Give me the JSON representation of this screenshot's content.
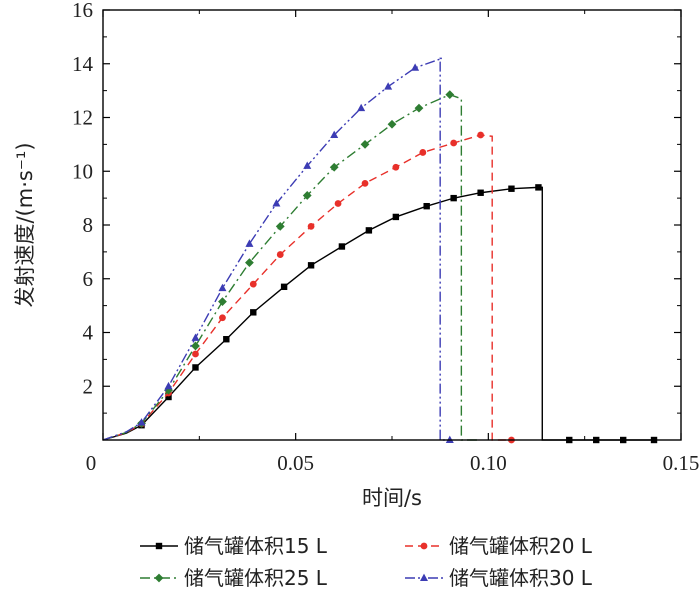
{
  "chart_data": {
    "type": "line",
    "xlabel": "时间/s",
    "ylabel": "发射速度/(m·s⁻¹)",
    "xlim": [
      0,
      0.15
    ],
    "ylim": [
      0,
      16
    ],
    "x_ticks": [
      0,
      0.05,
      0.1,
      0.15
    ],
    "x_tick_labels": [
      "0",
      "0.05",
      "0.10",
      "0.15"
    ],
    "y_ticks": [
      2,
      4,
      6,
      8,
      10,
      12,
      14,
      16
    ],
    "y_tick_labels": [
      "2",
      "4",
      "6",
      "8",
      "10",
      "12",
      "14",
      "16"
    ],
    "grid": false,
    "legend_position": "bottom",
    "series": [
      {
        "name": "储气罐体积15 L",
        "color": "#000000",
        "marker": "square",
        "dash": "solid",
        "x": [
          0,
          0.006,
          0.01,
          0.017,
          0.024,
          0.032,
          0.039,
          0.047,
          0.054,
          0.062,
          0.069,
          0.076,
          0.084,
          0.091,
          0.098,
          0.106,
          0.113,
          0.114,
          0.114,
          0.121,
          0.128,
          0.135,
          0.143
        ],
        "y": [
          0,
          0.25,
          0.55,
          1.6,
          2.7,
          3.75,
          4.75,
          5.7,
          6.5,
          7.2,
          7.8,
          8.3,
          8.7,
          9.0,
          9.2,
          9.35,
          9.4,
          9.4,
          0,
          0,
          0,
          0,
          0
        ],
        "marker_indices": [
          2,
          3,
          4,
          5,
          6,
          7,
          8,
          9,
          10,
          11,
          12,
          13,
          14,
          15,
          16,
          19,
          20,
          21,
          22
        ]
      },
      {
        "name": "储气罐体积20 L",
        "color": "#e8302a",
        "marker": "circle",
        "dash": "dash",
        "x": [
          0,
          0.006,
          0.01,
          0.017,
          0.024,
          0.031,
          0.039,
          0.046,
          0.054,
          0.061,
          0.068,
          0.076,
          0.083,
          0.091,
          0.098,
          0.101,
          0.101,
          0.106
        ],
        "y": [
          0,
          0.27,
          0.6,
          1.75,
          3.2,
          4.55,
          5.8,
          6.9,
          7.95,
          8.8,
          9.55,
          10.15,
          10.7,
          11.05,
          11.35,
          11.3,
          0,
          0
        ],
        "marker_indices": [
          2,
          3,
          4,
          5,
          6,
          7,
          8,
          9,
          10,
          11,
          12,
          13,
          14,
          17
        ]
      },
      {
        "name": "储气罐体积25 L",
        "color": "#2e7d32",
        "marker": "diamond",
        "dash": "dashdot",
        "x": [
          0,
          0.006,
          0.01,
          0.017,
          0.024,
          0.031,
          0.038,
          0.046,
          0.053,
          0.06,
          0.068,
          0.075,
          0.082,
          0.09,
          0.093,
          0.093,
          0.098
        ],
        "y": [
          0,
          0.28,
          0.62,
          1.85,
          3.5,
          5.15,
          6.6,
          7.95,
          9.1,
          10.15,
          11.0,
          11.75,
          12.35,
          12.85,
          12.7,
          0,
          0
        ],
        "marker_indices": [
          2,
          3,
          4,
          5,
          6,
          7,
          8,
          9,
          10,
          11,
          12,
          13
        ]
      },
      {
        "name": "储气罐体积30 L",
        "color": "#3c3cb4",
        "marker": "triangle",
        "dash": "dashdotdot",
        "x": [
          0,
          0.006,
          0.01,
          0.017,
          0.024,
          0.031,
          0.038,
          0.045,
          0.053,
          0.06,
          0.067,
          0.074,
          0.081,
          0.088,
          0.0875,
          0.0875,
          0.09
        ],
        "y": [
          0,
          0.3,
          0.65,
          2.0,
          3.8,
          5.65,
          7.3,
          8.8,
          10.2,
          11.35,
          12.35,
          13.15,
          13.85,
          14.2,
          14.2,
          0,
          0
        ],
        "marker_indices": [
          2,
          3,
          4,
          5,
          6,
          7,
          8,
          9,
          10,
          11,
          12,
          16
        ]
      }
    ]
  }
}
